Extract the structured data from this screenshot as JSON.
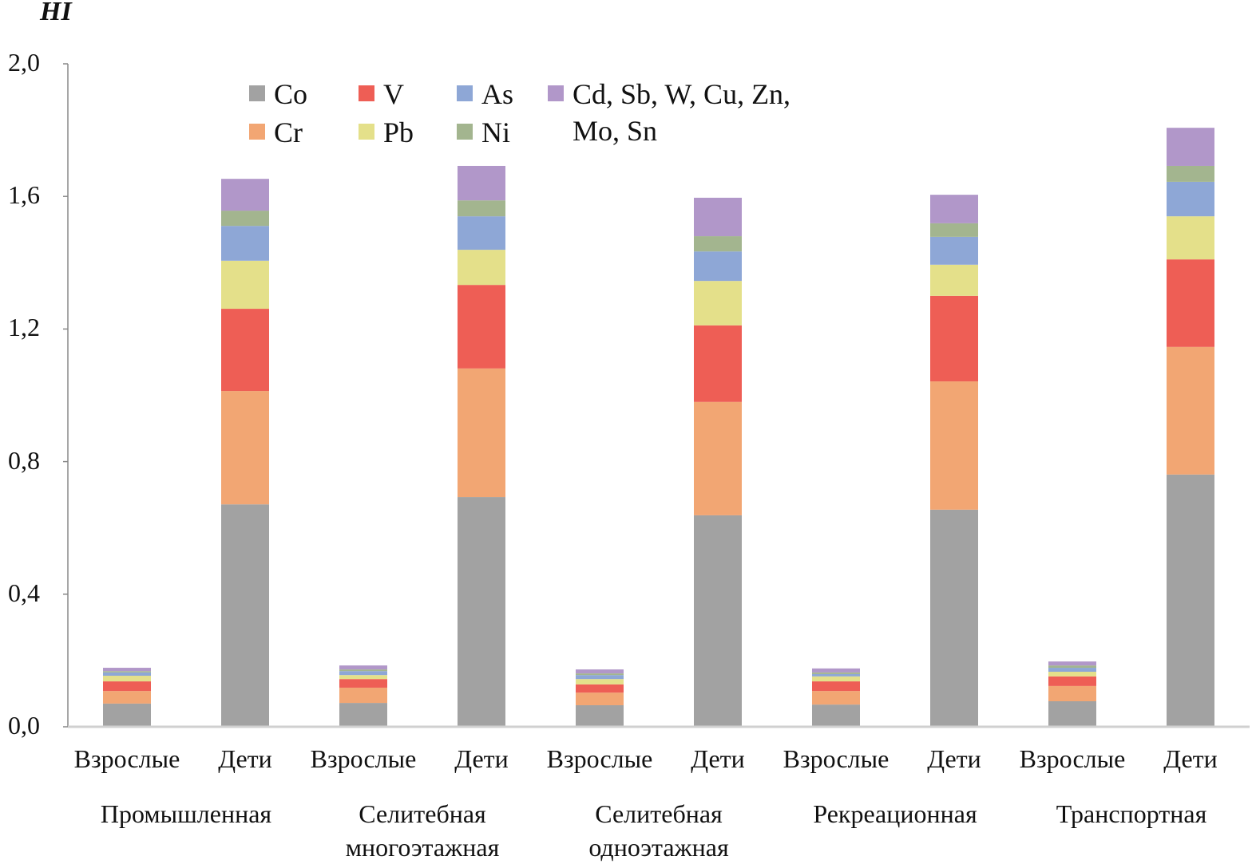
{
  "chart_data": {
    "type": "bar",
    "stacked": true,
    "title": "HI",
    "ylim": [
      0,
      2.0
    ],
    "yticks": [
      "0,0",
      "0,4",
      "0,8",
      "1,2",
      "1,6",
      "2,0"
    ],
    "ytick_values": [
      0,
      0.4,
      0.8,
      1.2,
      1.6,
      2.0
    ],
    "grid": false,
    "legend_position": "top-left",
    "categories": [
      "Взрослые",
      "Дети",
      "Взрослые",
      "Дети",
      "Взрослые",
      "Дети",
      "Взрослые",
      "Дети",
      "Взрослые",
      "Дети"
    ],
    "groups": [
      "Промышленная",
      "Селитебная\nмногоэтажная",
      "Селитебная\nодноэтажная",
      "Рекреационная",
      "Транспортная"
    ],
    "series": [
      {
        "name": "Co",
        "color": "#a2a2a2",
        "values": [
          0.07,
          0.671,
          0.072,
          0.693,
          0.065,
          0.638,
          0.067,
          0.655,
          0.077,
          0.761
        ]
      },
      {
        "name": "Cr",
        "color": "#f2a673",
        "values": [
          0.038,
          0.342,
          0.046,
          0.388,
          0.038,
          0.342,
          0.041,
          0.387,
          0.046,
          0.385
        ]
      },
      {
        "name": "V",
        "color": "#ee5e55",
        "values": [
          0.029,
          0.248,
          0.026,
          0.252,
          0.025,
          0.231,
          0.029,
          0.258,
          0.029,
          0.264
        ]
      },
      {
        "name": "Pb",
        "color": "#e4e08a",
        "values": [
          0.017,
          0.145,
          0.012,
          0.106,
          0.016,
          0.134,
          0.015,
          0.094,
          0.014,
          0.13
        ]
      },
      {
        "name": "As",
        "color": "#8ea7d6",
        "values": [
          0.01,
          0.105,
          0.012,
          0.101,
          0.012,
          0.089,
          0.007,
          0.084,
          0.012,
          0.104
        ]
      },
      {
        "name": "Ni",
        "color": "#a3b58f",
        "values": [
          0.004,
          0.046,
          0.005,
          0.048,
          0.005,
          0.046,
          0.005,
          0.041,
          0.007,
          0.048
        ]
      },
      {
        "name": "Cd, Sb, W, Cu, Zn, Mo, Sn",
        "color": "#b197c9",
        "values": [
          0.01,
          0.096,
          0.012,
          0.104,
          0.012,
          0.116,
          0.012,
          0.086,
          0.012,
          0.115
        ]
      }
    ]
  }
}
